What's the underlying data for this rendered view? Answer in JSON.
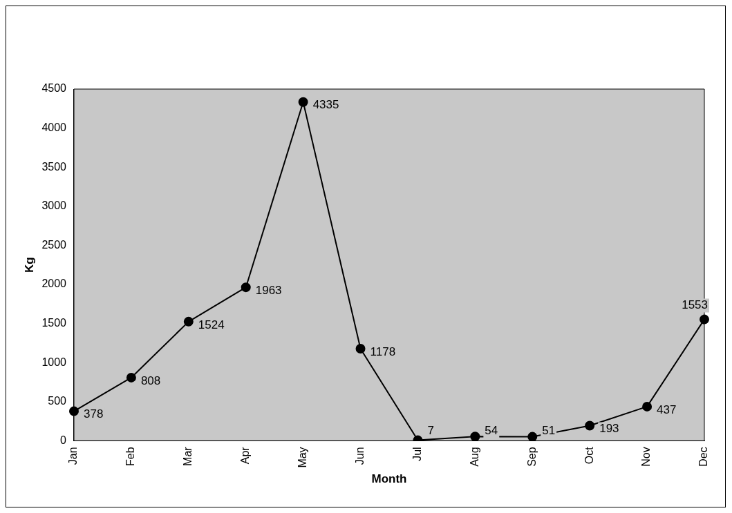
{
  "chart_data": {
    "type": "line",
    "xlabel": "Month",
    "ylabel": "Kg",
    "categories": [
      "Jan",
      "Feb",
      "Mar",
      "Apr",
      "May",
      "Jun",
      "Jul",
      "Aug",
      "Sep",
      "Oct",
      "Nov",
      "Dec"
    ],
    "series": [
      {
        "color": "#000000",
        "values": [
          378,
          808,
          1524,
          1963,
          4335,
          1178,
          7,
          54,
          51,
          193,
          437,
          1553
        ]
      }
    ],
    "ylim": [
      0,
      4500
    ],
    "yticks": [
      0,
      500,
      1000,
      1500,
      2000,
      2500,
      3000,
      3500,
      4000,
      4500
    ],
    "grid": false,
    "legend": false,
    "marker": "circle",
    "line_style": "solid",
    "data_labels": true
  }
}
